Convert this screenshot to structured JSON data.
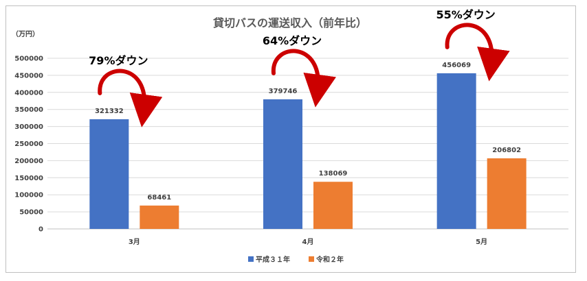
{
  "chart_data": {
    "type": "bar",
    "title": "貸切バスの運送収入（前年比）",
    "ylabel": "（万円）",
    "xlabel": "",
    "categories": [
      "3月",
      "4月",
      "5月"
    ],
    "series": [
      {
        "name": "平成３１年",
        "color": "#4472c4",
        "values": [
          321332,
          379746,
          456069
        ]
      },
      {
        "name": "令和２年",
        "color": "#ed7d31",
        "values": [
          68461,
          138069,
          206802
        ]
      }
    ],
    "ylim": [
      0,
      500000
    ],
    "yticks": [
      0,
      50000,
      100000,
      150000,
      200000,
      250000,
      300000,
      350000,
      400000,
      450000,
      500000
    ],
    "grid": true,
    "legend": "bottom",
    "annotations": [
      "79%ダウン",
      "64%ダウン",
      "55%ダウン"
    ],
    "arrow_color": "#cc0000"
  }
}
